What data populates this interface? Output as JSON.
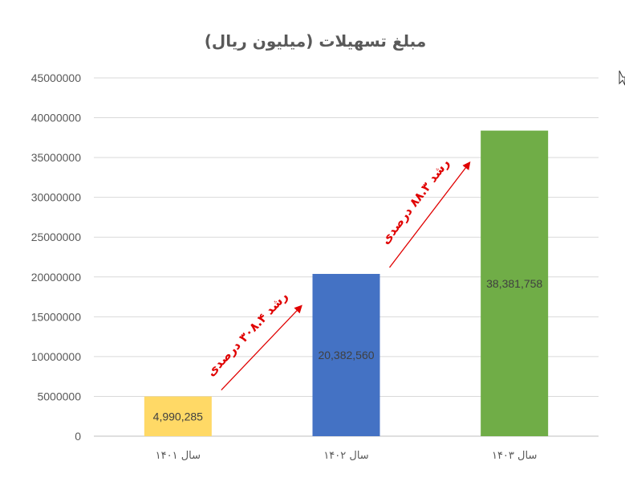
{
  "chart_data": {
    "type": "bar",
    "title": "مبلغ تسهیلات (میلیون ریال)",
    "categories": [
      "سال ۱۴۰۱",
      "سال ۱۴۰۲",
      "سال ۱۴۰۳"
    ],
    "values": [
      4990285,
      20382560,
      38381758
    ],
    "data_labels": [
      "4,990,285",
      "20,382,560",
      "38,381,758"
    ],
    "colors": [
      "#ffd966",
      "#4472c4",
      "#70ad47"
    ],
    "ylim": [
      0,
      45000000
    ],
    "yticks": [
      "0",
      "5000000",
      "10000000",
      "15000000",
      "20000000",
      "25000000",
      "30000000",
      "35000000",
      "40000000",
      "45000000"
    ],
    "ytick_values": [
      0,
      5000000,
      10000000,
      15000000,
      20000000,
      25000000,
      30000000,
      35000000,
      40000000,
      45000000
    ],
    "grid": true,
    "annotations": [
      {
        "text": "رشد ۳۰۸.۴ درصدی",
        "from_category": 0,
        "to_category": 1,
        "color": "#e00000"
      },
      {
        "text": "رشد ۸۸.۳ درصدی",
        "from_category": 1,
        "to_category": 2,
        "color": "#e00000"
      }
    ]
  }
}
